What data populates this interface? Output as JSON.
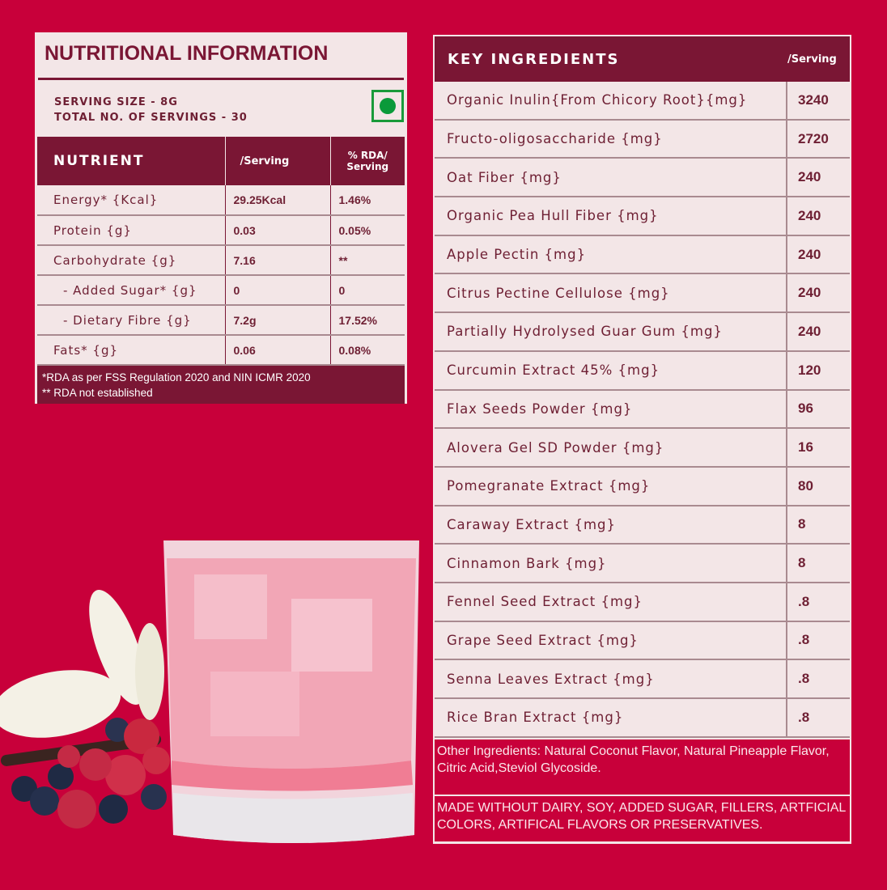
{
  "nutrition": {
    "title": "NUTRITIONAL INFORMATION",
    "serving_size": "SERVING SIZE  - 8G",
    "total_servings": "TOTAL NO. OF SERVINGS - 30",
    "veg_mark_color": "#0a9a3a",
    "headers": [
      "NUTRIENT",
      "/Serving",
      "% RDA/ Serving"
    ],
    "rows": [
      [
        "Energy* {Kcal}",
        "29.25Kcal",
        "1.46%"
      ],
      [
        "Protein {g}",
        "0.03",
        "0.05%"
      ],
      [
        "Carbohydrate {g}",
        "7.16",
        "**"
      ],
      [
        "  - Added Sugar* {g}",
        "0",
        "0"
      ],
      [
        "  - Dietary Fibre {g}",
        "7.2g",
        "17.52%"
      ],
      [
        "Fats* {g}",
        "0.06",
        "0.08%"
      ]
    ],
    "footnote1": "*RDA as per FSS Regulation 2020 and NIN ICMR 2020",
    "footnote2": "** RDA not established"
  },
  "ingredients": {
    "title": "KEY INGREDIENTS",
    "per": "/Serving",
    "rows": [
      [
        "Organic Inulin{From Chicory Root}{mg}",
        "3240"
      ],
      [
        "Fructo-oligosaccharide {mg}",
        "2720"
      ],
      [
        "Oat Fiber {mg}",
        "240"
      ],
      [
        "Organic Pea Hull Fiber {mg}",
        "240"
      ],
      [
        "Apple Pectin {mg}",
        "240"
      ],
      [
        "Citrus Pectine Cellulose {mg}",
        "240"
      ],
      [
        "Partially Hydrolysed Guar Gum {mg}",
        "240"
      ],
      [
        "Curcumin Extract 45% {mg}",
        "120"
      ],
      [
        "Flax Seeds Powder {mg}",
        "96"
      ],
      [
        "Alovera Gel SD Powder {mg}",
        "16"
      ],
      [
        "Pomegranate Extract {mg}",
        "80"
      ],
      [
        "Caraway Extract {mg}",
        "8"
      ],
      [
        "Cinnamon Bark {mg}",
        "8"
      ],
      [
        "Fennel Seed Extract {mg}",
        ".8"
      ],
      [
        "Grape Seed Extract {mg}",
        ".8"
      ],
      [
        "Senna Leaves Extract {mg}",
        ".8"
      ],
      [
        "Rice Bran Extract {mg}",
        ".8"
      ]
    ],
    "other": "Other Ingredients: Natural Coconut Flavor, Natural Pineapple Flavor, Citric Acid,Steviol Glycoside.",
    "made_without": "MADE WITHOUT DAIRY, SOY, ADDED SUGAR, FILLERS, ARTFICIAL COLORS, ARTIFICAL FLAVORS OR PRESERVATIVES."
  },
  "colors": {
    "background": "#c8003a",
    "maroon": "#7a1634",
    "panel": "#f3e6e7"
  }
}
